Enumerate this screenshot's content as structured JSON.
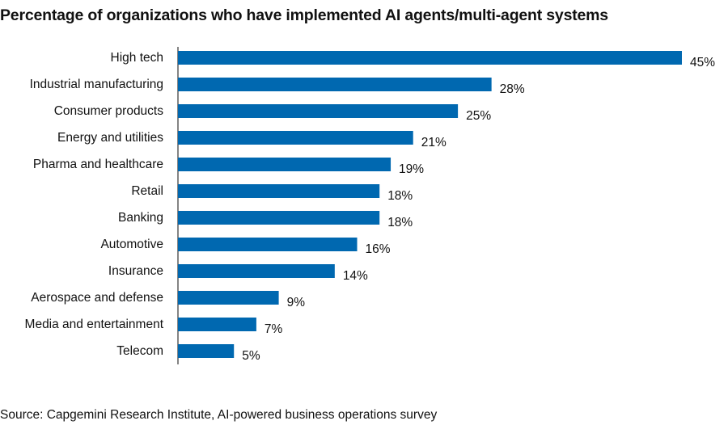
{
  "chart_data": {
    "type": "bar",
    "orientation": "horizontal",
    "title": "Percentage of organizations who have implemented AI agents/multi-agent systems",
    "categories": [
      "High tech",
      "Industrial manufacturing",
      "Consumer products",
      "Energy and utilities",
      "Pharma and healthcare",
      "Retail",
      "Banking",
      "Automotive",
      "Insurance",
      "Aerospace and defense",
      "Media and entertainment",
      "Telecom"
    ],
    "values": [
      45,
      28,
      25,
      21,
      19,
      18,
      18,
      16,
      14,
      9,
      7,
      5
    ],
    "value_labels": [
      "45%",
      "28%",
      "25%",
      "21%",
      "19%",
      "18%",
      "18%",
      "16%",
      "14%",
      "9%",
      "7%",
      "5%"
    ],
    "xlim": [
      0,
      45
    ],
    "unit": "%",
    "grid": false,
    "legend": "none",
    "bar_color": "#0068b0"
  },
  "footer": {
    "source": "Source: Capgemini Research Institute, AI-powered business operations survey"
  }
}
